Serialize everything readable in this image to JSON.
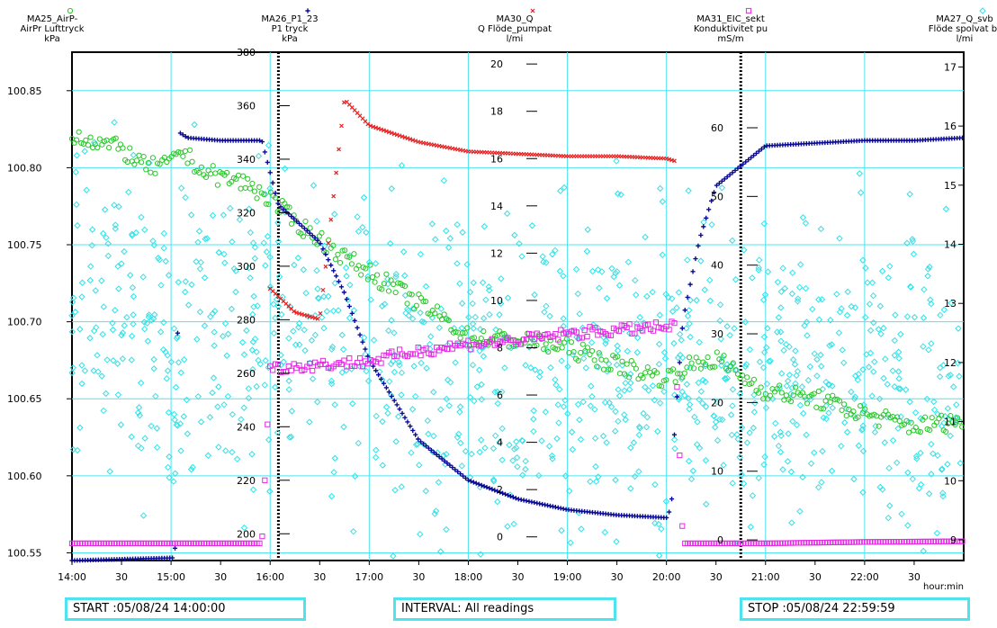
{
  "chart_data": {
    "type": "line",
    "x_axis": {
      "start": "14:00",
      "end": "23:00",
      "tick_labels": [
        "14:00",
        "30",
        "15:00",
        "30",
        "16:00",
        "30",
        "17:00",
        "30",
        "18:00",
        "30",
        "19:00",
        "30",
        "20:00",
        "30",
        "21:00",
        "30",
        "22:00",
        "30"
      ],
      "unit_label": "hour:min"
    },
    "axes": [
      {
        "id": "MA25",
        "code": "MA25_AirP-",
        "name": "AirPr Lufttryck",
        "unit": "kPa",
        "range": [
          100.545,
          100.875
        ],
        "ticks": [
          "100.55",
          "100.60",
          "100.65",
          "100.70",
          "100.75",
          "100.80",
          "100.85"
        ],
        "marker": "circle",
        "color": "#28c828"
      },
      {
        "id": "MA26",
        "code": "MA26_P1_23",
        "name": "P1 tryck",
        "unit": "kPa",
        "range": [
          190,
          380
        ],
        "ticks": [
          "200",
          "220",
          "240",
          "260",
          "280",
          "300",
          "320",
          "340",
          "360",
          "380"
        ],
        "marker": "plus",
        "color": "#0a0a96"
      },
      {
        "id": "MA30",
        "code": "MA30_Q",
        "name": "Q Flöde_pumpat",
        "unit": "l/mi",
        "range": [
          -1,
          20.5
        ],
        "ticks": [
          "0",
          "2",
          "4",
          "6",
          "8",
          "10",
          "12",
          "14",
          "16",
          "18",
          "20"
        ],
        "marker": "x",
        "color": "#e62020"
      },
      {
        "id": "MA31",
        "code": "MA31_EIC_sekt",
        "name": "Konduktivitet pu",
        "unit": "mS/m",
        "range": [
          -3,
          71
        ],
        "ticks": [
          "0",
          "10",
          "20",
          "30",
          "40",
          "50",
          "60"
        ],
        "marker": "square",
        "color": "#e628e6"
      },
      {
        "id": "MA27",
        "code": "MA27_Q_svb",
        "name": "Flöde spolvat br",
        "unit": "l/mi",
        "range": [
          8.65,
          17.25
        ],
        "ticks": [
          "9",
          "10",
          "11",
          "12",
          "13",
          "14",
          "15",
          "16",
          "17"
        ],
        "marker": "diamond",
        "color": "#32e1e6"
      }
    ],
    "series": [
      {
        "axis": "MA25",
        "x": [
          "14:00",
          "14:30",
          "14:45",
          "15:00",
          "15:05",
          "15:20",
          "15:45",
          "16:00",
          "16:15",
          "16:45",
          "17:15",
          "17:45",
          "18:00",
          "18:30",
          "19:00",
          "19:30",
          "20:00",
          "20:10",
          "20:30",
          "20:45",
          "21:00",
          "21:30",
          "22:00",
          "22:30",
          "23:00"
        ],
        "y": [
          100.822,
          100.812,
          100.8,
          100.802,
          100.812,
          100.797,
          100.79,
          100.78,
          100.765,
          100.742,
          100.722,
          100.702,
          100.69,
          100.688,
          100.683,
          100.672,
          100.663,
          100.67,
          100.676,
          100.665,
          100.655,
          100.65,
          100.64,
          100.632,
          100.636
        ]
      },
      {
        "axis": "MA26",
        "x": [
          "14:00",
          "15:02",
          "15:03",
          "15:05",
          "15:10",
          "15:30",
          "15:55",
          "16:05",
          "16:30",
          "16:45",
          "17:00",
          "17:30",
          "18:00",
          "18:30",
          "19:00",
          "19:30",
          "20:00",
          "20:03",
          "20:05",
          "20:10",
          "20:20",
          "20:30",
          "21:00",
          "21:30",
          "22:00",
          "22:30",
          "23:00"
        ],
        "y": [
          190,
          191,
          200,
          350,
          348,
          347,
          347,
          323,
          309,
          290,
          265,
          235,
          220,
          213,
          209,
          207,
          206,
          210,
          240,
          280,
          310,
          330,
          345,
          346,
          347,
          347,
          348
        ]
      },
      {
        "axis": "MA30",
        "x": [
          "16:00",
          "16:15",
          "16:30",
          "16:45",
          "17:00",
          "17:30",
          "18:00",
          "18:30",
          "19:00",
          "19:30",
          "20:00",
          "20:05"
        ],
        "y": [
          10.5,
          9.5,
          9.2,
          18.5,
          17.4,
          16.7,
          16.3,
          16.2,
          16.1,
          16.1,
          16.0,
          15.9
        ]
      },
      {
        "axis": "MA31",
        "x": [
          "14:00",
          "14:30",
          "15:00",
          "15:30",
          "15:55",
          "16:00",
          "16:30",
          "17:00",
          "17:30",
          "18:00",
          "18:30",
          "19:00",
          "19:30",
          "20:00",
          "20:05",
          "20:10",
          "21:00",
          "22:00",
          "23:00"
        ],
        "y": [
          -0.5,
          -0.5,
          -0.5,
          -0.5,
          -0.5,
          25,
          25.5,
          26,
          27.5,
          28.5,
          29,
          30,
          30.5,
          31,
          31,
          -0.5,
          -0.5,
          -0.3,
          -0.2
        ]
      },
      {
        "axis": "MA27",
        "x": [
          "14:00",
          "15:00",
          "16:00",
          "17:00",
          "18:00",
          "19:00",
          "20:00",
          "21:00",
          "22:00",
          "23:00"
        ],
        "y": [
          13.0,
          12.7,
          12.5,
          12.0,
          11.8,
          11.8,
          11.9,
          11.7,
          11.8,
          11.6
        ],
        "scatter": "noisy"
      }
    ],
    "vertical_markers": [
      "16:05",
      "20:45"
    ]
  },
  "footer": {
    "start": "START :05/08/24 14:00:00",
    "interval": "INTERVAL: All readings",
    "stop": "STOP :05/08/24 22:59:59"
  }
}
